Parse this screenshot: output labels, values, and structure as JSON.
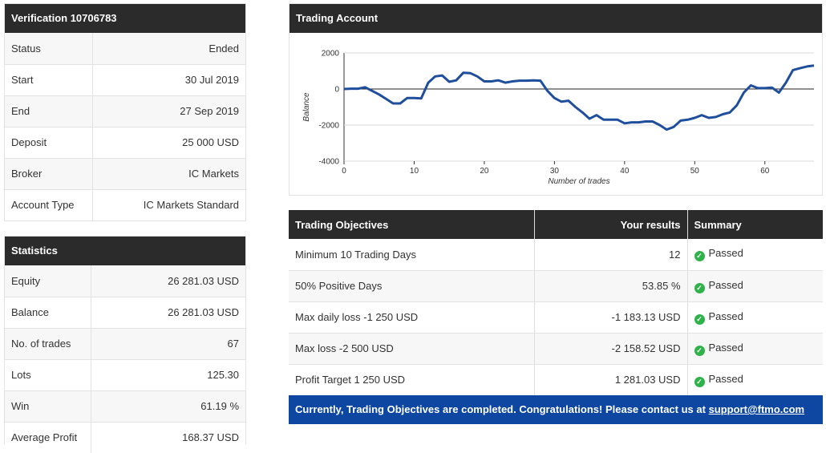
{
  "verification": {
    "title": "Verification 10706783",
    "rows": [
      {
        "label": "Status",
        "value": "Ended"
      },
      {
        "label": "Start",
        "value": "30 Jul 2019"
      },
      {
        "label": "End",
        "value": "27 Sep 2019"
      },
      {
        "label": "Deposit",
        "value": "25 000 USD"
      },
      {
        "label": "Broker",
        "value": "IC Markets"
      },
      {
        "label": "Account Type",
        "value": "IC Markets Standard"
      }
    ]
  },
  "statistics": {
    "title": "Statistics",
    "rows": [
      {
        "label": "Equity",
        "value": "26 281.03 USD"
      },
      {
        "label": "Balance",
        "value": "26 281.03 USD"
      },
      {
        "label": "No. of trades",
        "value": "67"
      },
      {
        "label": "Lots",
        "value": "125.30"
      },
      {
        "label": "Win",
        "value": "61.19 %"
      },
      {
        "label": "Average Profit",
        "value": "168.37 USD"
      }
    ]
  },
  "trading_account": {
    "title": "Trading Account"
  },
  "chart_data": {
    "type": "line",
    "title": "",
    "xlabel": "Number of trades",
    "ylabel": "Balance",
    "xlim": [
      0,
      67
    ],
    "ylim": [
      -4000,
      2000
    ],
    "x_ticks": [
      0,
      10,
      20,
      30,
      40,
      50,
      60
    ],
    "y_ticks": [
      2000,
      0,
      -2000,
      -4000
    ],
    "zero_line": true,
    "series_color": "#1f4e9c",
    "series": [
      {
        "x": [
          0,
          1,
          2,
          3,
          4,
          5,
          6,
          7,
          8,
          9,
          10,
          11,
          12,
          13,
          14,
          15,
          16,
          17,
          18,
          19,
          20,
          21,
          22,
          23,
          24,
          25,
          26,
          27,
          28,
          29,
          30,
          31,
          32,
          33,
          34,
          35,
          36,
          37,
          38,
          39,
          40,
          41,
          42,
          43,
          44,
          45,
          46,
          47,
          48,
          49,
          50,
          51,
          52,
          53,
          54,
          55,
          56,
          57,
          58,
          59,
          60,
          61,
          62,
          63,
          64,
          65,
          66,
          67
        ],
        "y": [
          0,
          20,
          20,
          100,
          -100,
          -300,
          -550,
          -800,
          -800,
          -500,
          -500,
          -520,
          350,
          700,
          750,
          400,
          480,
          900,
          880,
          700,
          420,
          420,
          480,
          350,
          420,
          460,
          460,
          480,
          460,
          -100,
          -500,
          -700,
          -650,
          -1000,
          -1300,
          -1650,
          -1450,
          -1700,
          -1700,
          -1700,
          -1900,
          -1850,
          -1850,
          -1800,
          -1800,
          -2000,
          -2250,
          -2100,
          -1750,
          -1700,
          -1600,
          -1450,
          -1600,
          -1550,
          -1400,
          -1300,
          -900,
          -200,
          200,
          50,
          50,
          80,
          -200,
          350,
          1050,
          1150,
          1250,
          1300
        ]
      }
    ]
  },
  "objectives": {
    "headers": {
      "objective": "Trading Objectives",
      "results": "Your results",
      "summary": "Summary"
    },
    "rows": [
      {
        "objective": "Minimum 10 Trading Days",
        "result": "12",
        "summary": "Passed"
      },
      {
        "objective": "50% Positive Days",
        "result": "53.85 %",
        "summary": "Passed"
      },
      {
        "objective": "Max daily loss -1 250 USD",
        "result": "-1 183.13 USD",
        "summary": "Passed"
      },
      {
        "objective": "Max loss -2 500 USD",
        "result": "-2 158.52 USD",
        "summary": "Passed"
      },
      {
        "objective": "Profit Target 1 250 USD",
        "result": "1 281.03 USD",
        "summary": "Passed"
      }
    ],
    "banner_text": "Currently, Trading Objectives are completed. Congratulations! Please contact us at ",
    "banner_link": "support@ftmo.com"
  }
}
